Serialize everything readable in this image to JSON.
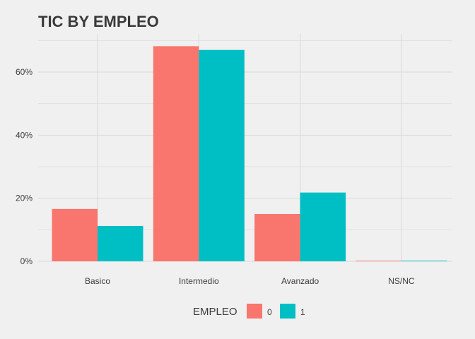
{
  "chart_data": {
    "type": "bar",
    "title": "TIC BY EMPLEO",
    "xlabel": "",
    "ylabel": "",
    "categories": [
      "Basico",
      "Intermedio",
      "Avanzado",
      "NS/NC"
    ],
    "series": [
      {
        "name": "0",
        "values": [
          16.6,
          68.2,
          15.0,
          0.2
        ]
      },
      {
        "name": "1",
        "values": [
          11.2,
          67.0,
          21.8,
          0.2
        ]
      }
    ],
    "ylim": [
      0,
      70
    ],
    "yticks": [
      0,
      20,
      40,
      60
    ],
    "ytick_labels": [
      "0%",
      "20%",
      "40%",
      "60%"
    ],
    "grid": true,
    "legend": {
      "title": "EMPLEO",
      "placement": "bottom"
    }
  },
  "colors": {
    "series_0": "#F8766D",
    "series_1": "#00BFC4",
    "grid": "#d9d9d9",
    "background": "#f0f0f0",
    "text": "#3c3c3c",
    "title": "#3a3a3a"
  }
}
